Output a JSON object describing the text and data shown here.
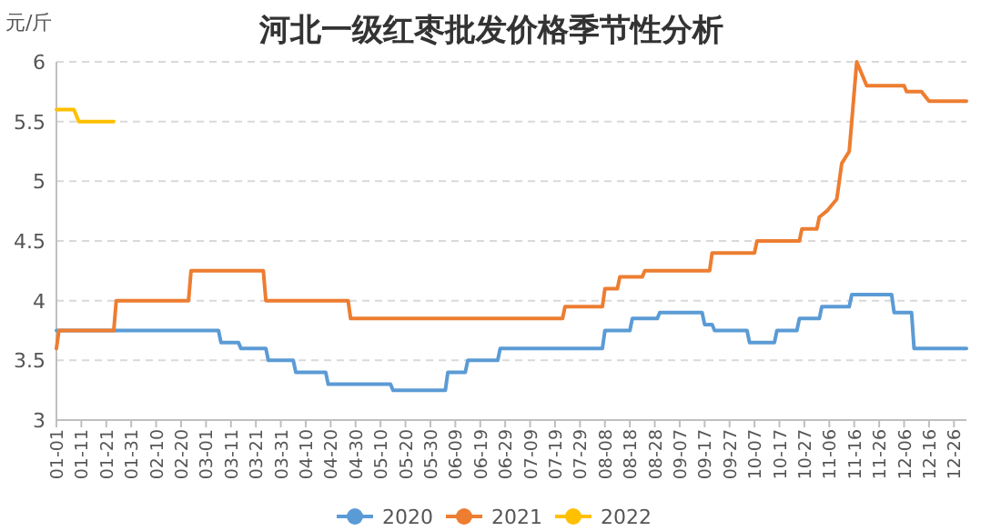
{
  "chart_data": {
    "type": "line",
    "title": "河北一级红枣批发价格季节性分析",
    "ylabel": "元/斤",
    "grid": "y",
    "legend": "bottom",
    "xlim": [
      "--01-01",
      "--12-31"
    ],
    "ylim": [
      3,
      6
    ],
    "yticks": [
      3,
      3.5,
      4,
      4.5,
      5,
      5.5,
      6
    ],
    "xticks": [
      {
        "value": "--01-01",
        "label": "01-01"
      },
      {
        "value": "--01-11",
        "label": "01-11"
      },
      {
        "value": "--01-21",
        "label": "01-21"
      },
      {
        "value": "--01-31",
        "label": "01-31"
      },
      {
        "value": "--02-10",
        "label": "02-10"
      },
      {
        "value": "--02-20",
        "label": "02-20"
      },
      {
        "value": "--03-01",
        "label": "03-01"
      },
      {
        "value": "--03-11",
        "label": "03-11"
      },
      {
        "value": "--03-21",
        "label": "03-21"
      },
      {
        "value": "--03-31",
        "label": "03-31"
      },
      {
        "value": "--04-10",
        "label": "04-10"
      },
      {
        "value": "--04-20",
        "label": "04-20"
      },
      {
        "value": "--04-30",
        "label": "04-30"
      },
      {
        "value": "--05-10",
        "label": "05-10"
      },
      {
        "value": "--05-20",
        "label": "05-20"
      },
      {
        "value": "--05-30",
        "label": "05-30"
      },
      {
        "value": "--06-09",
        "label": "06-09"
      },
      {
        "value": "--06-19",
        "label": "06-19"
      },
      {
        "value": "--06-29",
        "label": "06-29"
      },
      {
        "value": "--07-09",
        "label": "07-09"
      },
      {
        "value": "--07-19",
        "label": "07-19"
      },
      {
        "value": "--07-29",
        "label": "07-29"
      },
      {
        "value": "--08-08",
        "label": "08-08"
      },
      {
        "value": "--08-18",
        "label": "08-18"
      },
      {
        "value": "--08-28",
        "label": "08-28"
      },
      {
        "value": "--09-07",
        "label": "09-07"
      },
      {
        "value": "--09-17",
        "label": "09-17"
      },
      {
        "value": "--09-27",
        "label": "09-27"
      },
      {
        "value": "--10-07",
        "label": "10-07"
      },
      {
        "value": "--10-17",
        "label": "10-17"
      },
      {
        "value": "--10-27",
        "label": "10-27"
      },
      {
        "value": "--11-06",
        "label": "11-06"
      },
      {
        "value": "--11-16",
        "label": "11-16"
      },
      {
        "value": "--11-26",
        "label": "11-26"
      },
      {
        "value": "--12-06",
        "label": "12-06"
      },
      {
        "value": "--12-16",
        "label": "12-16"
      },
      {
        "value": "--12-26",
        "label": "12-26"
      }
    ],
    "series": [
      {
        "name": "2020",
        "color": "#5b9bd5",
        "x": [
          "--01-01",
          "--03-06",
          "--03-07",
          "--03-14",
          "--03-15",
          "--03-25",
          "--03-26",
          "--04-05",
          "--04-06",
          "--04-18",
          "--04-19",
          "--05-14",
          "--05-15",
          "--06-05",
          "--06-06",
          "--06-13",
          "--06-14",
          "--06-26",
          "--06-27",
          "--08-07",
          "--08-08",
          "--08-18",
          "--08-19",
          "--08-29",
          "--08-30",
          "--09-16",
          "--09-17",
          "--09-20",
          "--09-21",
          "--10-04",
          "--10-05",
          "--10-15",
          "--10-16",
          "--10-24",
          "--10-25",
          "--11-02",
          "--11-03",
          "--11-14",
          "--11-15",
          "--12-01",
          "--12-02",
          "--12-09",
          "--12-10",
          "--12-31"
        ],
        "values": [
          3.75,
          3.75,
          3.65,
          3.65,
          3.6,
          3.6,
          3.5,
          3.5,
          3.4,
          3.4,
          3.3,
          3.3,
          3.25,
          3.25,
          3.4,
          3.4,
          3.5,
          3.5,
          3.6,
          3.6,
          3.75,
          3.75,
          3.85,
          3.85,
          3.9,
          3.9,
          3.8,
          3.8,
          3.75,
          3.75,
          3.65,
          3.65,
          3.75,
          3.75,
          3.85,
          3.85,
          3.95,
          3.95,
          4.05,
          4.05,
          3.9,
          3.9,
          3.6,
          3.6
        ]
      },
      {
        "name": "2021",
        "color": "#ed7d31",
        "x": [
          "--01-01",
          "--01-02",
          "--01-24",
          "--01-25",
          "--02-23",
          "--02-24",
          "--03-24",
          "--03-25",
          "--04-27",
          "--04-28",
          "--07-22",
          "--07-23",
          "--08-07",
          "--08-08",
          "--08-13",
          "--08-14",
          "--08-23",
          "--08-24",
          "--09-19",
          "--09-20",
          "--10-07",
          "--10-08",
          "--10-25",
          "--10-26",
          "--11-01",
          "--11-02",
          "--11-05",
          "--11-09",
          "--11-11",
          "--11-14",
          "--11-17",
          "--11-21",
          "--12-06",
          "--12-07",
          "--12-13",
          "--12-16",
          "--12-31"
        ],
        "values": [
          3.6,
          3.75,
          3.75,
          4.0,
          4.0,
          4.25,
          4.25,
          4.0,
          4.0,
          3.85,
          3.85,
          3.95,
          3.95,
          4.1,
          4.1,
          4.2,
          4.2,
          4.25,
          4.25,
          4.4,
          4.4,
          4.5,
          4.5,
          4.6,
          4.6,
          4.7,
          4.75,
          4.85,
          5.15,
          5.25,
          6.0,
          5.8,
          5.8,
          5.75,
          5.75,
          5.67,
          5.67
        ]
      },
      {
        "name": "2022",
        "color": "#ffc000",
        "x": [
          "--01-01",
          "--01-08",
          "--01-10",
          "--01-24"
        ],
        "values": [
          5.6,
          5.6,
          5.5,
          5.5
        ]
      }
    ]
  }
}
